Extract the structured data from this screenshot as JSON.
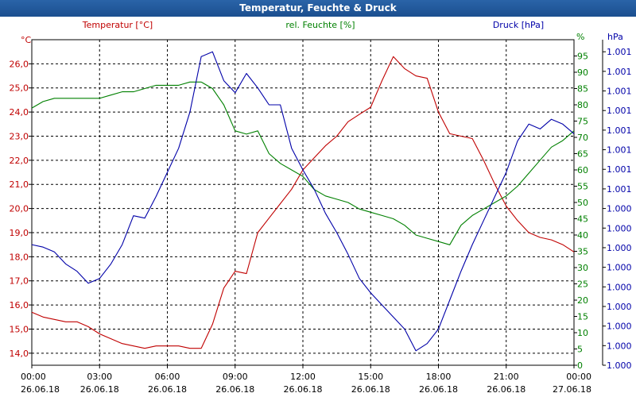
{
  "chart_data": {
    "type": "line",
    "title": "Temperatur, Feuchte & Druck",
    "x_ticks": [
      {
        "time": "00:00",
        "date": "26.06.18"
      },
      {
        "time": "03:00",
        "date": "26.06.18"
      },
      {
        "time": "06:00",
        "date": "26.06.18"
      },
      {
        "time": "09:00",
        "date": "26.06.18"
      },
      {
        "time": "12:00",
        "date": "26.06.18"
      },
      {
        "time": "15:00",
        "date": "26.06.18"
      },
      {
        "time": "18:00",
        "date": "26.06.18"
      },
      {
        "time": "21:00",
        "date": "26.06.18"
      },
      {
        "time": "00:00",
        "date": "27.06.18"
      }
    ],
    "xlim": [
      0,
      24
    ],
    "axes": {
      "temperature": {
        "unit": "°C",
        "legend": "Temperatur [°C]",
        "color": "#c00000",
        "ylim": [
          13.5,
          27.0
        ],
        "ticks": [
          "14,0",
          "15,0",
          "16,0",
          "17,0",
          "18,0",
          "19,0",
          "20,0",
          "21,0",
          "22,0",
          "23,0",
          "24,0",
          "25,0",
          "26,0"
        ],
        "tick_values": [
          14,
          15,
          16,
          17,
          18,
          19,
          20,
          21,
          22,
          23,
          24,
          25,
          26
        ]
      },
      "humidity": {
        "unit": "%",
        "legend": "rel. Feuchte [%]",
        "color": "#008000",
        "ylim": [
          0,
          100
        ],
        "ticks": [
          "0",
          "5",
          "10",
          "15",
          "20",
          "25",
          "30",
          "35",
          "40",
          "45",
          "50",
          "55",
          "60",
          "65",
          "70",
          "75",
          "80",
          "85",
          "90",
          "95"
        ],
        "tick_values": [
          0,
          5,
          10,
          15,
          20,
          25,
          30,
          35,
          40,
          45,
          50,
          55,
          60,
          65,
          70,
          75,
          80,
          85,
          90,
          95
        ]
      },
      "pressure": {
        "unit": "hPa",
        "legend": "Druck [hPa]",
        "color": "#0000a8",
        "ylim": [
          0,
          13.5
        ],
        "ticks": [
          "1.000",
          "1.000",
          "1.000",
          "1.000",
          "1.000",
          "1.000",
          "1.000",
          "1.000",
          "1.000",
          "1.001",
          "1.001",
          "1.001",
          "1.001",
          "1.001",
          "1.001",
          "1.001",
          "1.001"
        ],
        "tick_positions": [
          0,
          0.8125,
          1.625,
          2.4375,
          3.25,
          4.0625,
          4.875,
          5.6875,
          6.5,
          7.3125,
          8.125,
          8.9375,
          9.75,
          10.5625,
          11.375,
          12.1875,
          13.0
        ]
      }
    },
    "series": [
      {
        "name": "Temperatur",
        "axis": "temperature",
        "color": "#c00000",
        "x": [
          0,
          0.5,
          1,
          1.5,
          2,
          2.5,
          3,
          3.5,
          4,
          4.5,
          5,
          5.5,
          6,
          6.5,
          7,
          7.5,
          8,
          8.5,
          9,
          9.5,
          10,
          10.5,
          11,
          11.5,
          12,
          12.5,
          13,
          13.5,
          14,
          14.5,
          15,
          15.5,
          16,
          16.5,
          17,
          17.5,
          18,
          18.5,
          19,
          19.5,
          20,
          20.5,
          21,
          21.5,
          22,
          22.5,
          23,
          23.5,
          24
        ],
        "values": [
          15.7,
          15.5,
          15.4,
          15.3,
          15.3,
          15.1,
          14.8,
          14.6,
          14.4,
          14.3,
          14.2,
          14.3,
          14.3,
          14.3,
          14.2,
          14.2,
          15.2,
          16.7,
          17.4,
          17.3,
          19.0,
          19.6,
          20.2,
          20.8,
          21.6,
          22.1,
          22.6,
          23.0,
          23.6,
          23.9,
          24.2,
          25.3,
          26.3,
          25.8,
          25.5,
          25.4,
          24.0,
          23.1,
          23.0,
          22.9,
          22.0,
          21.0,
          20.1,
          19.5,
          19.0,
          18.8,
          18.7,
          18.5,
          18.2
        ]
      },
      {
        "name": "rel. Feuchte",
        "axis": "humidity",
        "color": "#008000",
        "x": [
          0,
          0.5,
          1,
          1.5,
          2,
          2.5,
          3,
          3.5,
          4,
          4.5,
          5,
          5.5,
          6,
          6.5,
          7,
          7.5,
          8,
          8.5,
          9,
          9.5,
          10,
          10.5,
          11,
          11.5,
          12,
          12.5,
          13,
          13.5,
          14,
          14.5,
          15,
          15.5,
          16,
          16.5,
          17,
          17.5,
          18,
          18.5,
          19,
          19.5,
          20,
          20.5,
          21,
          21.5,
          22,
          22.5,
          23,
          23.5,
          24
        ],
        "values": [
          79,
          81,
          82,
          82,
          82,
          82,
          82,
          83,
          84,
          84,
          85,
          86,
          86,
          86,
          87,
          87,
          85,
          80,
          72,
          71,
          72,
          65,
          62,
          60,
          58,
          54,
          52,
          51,
          50,
          48,
          47,
          46,
          45,
          43,
          40,
          39,
          38,
          37,
          43,
          46,
          48,
          50,
          52,
          55,
          59,
          63,
          67,
          69,
          72
        ]
      },
      {
        "name": "Druck",
        "axis": "pressure",
        "color": "#0000a8",
        "x": [
          0,
          0.5,
          1,
          1.5,
          2,
          2.5,
          3,
          3.5,
          4,
          4.5,
          5,
          5.5,
          6,
          6.5,
          7,
          7.5,
          8,
          8.5,
          9,
          9.5,
          10,
          10.5,
          11,
          11.5,
          12,
          12.5,
          13,
          13.5,
          14,
          14.5,
          15,
          15.5,
          16,
          16.5,
          17,
          17.5,
          18,
          18.5,
          19,
          19.5,
          20,
          20.5,
          21,
          21.5,
          22,
          22.5,
          23,
          23.5,
          24
        ],
        "values": [
          5.0,
          4.9,
          4.7,
          4.2,
          3.9,
          3.4,
          3.6,
          4.2,
          5.0,
          6.2,
          6.1,
          7.0,
          8.0,
          9.0,
          10.5,
          12.8,
          13.0,
          11.8,
          11.3,
          12.1,
          11.5,
          10.8,
          10.8,
          9.0,
          8.1,
          7.3,
          6.3,
          5.5,
          4.6,
          3.6,
          3.0,
          2.5,
          2.0,
          1.5,
          0.6,
          0.9,
          1.5,
          2.7,
          3.9,
          5.0,
          6.0,
          7.0,
          8.0,
          9.3,
          10.0,
          9.8,
          10.2,
          10.0,
          9.6
        ]
      }
    ]
  }
}
